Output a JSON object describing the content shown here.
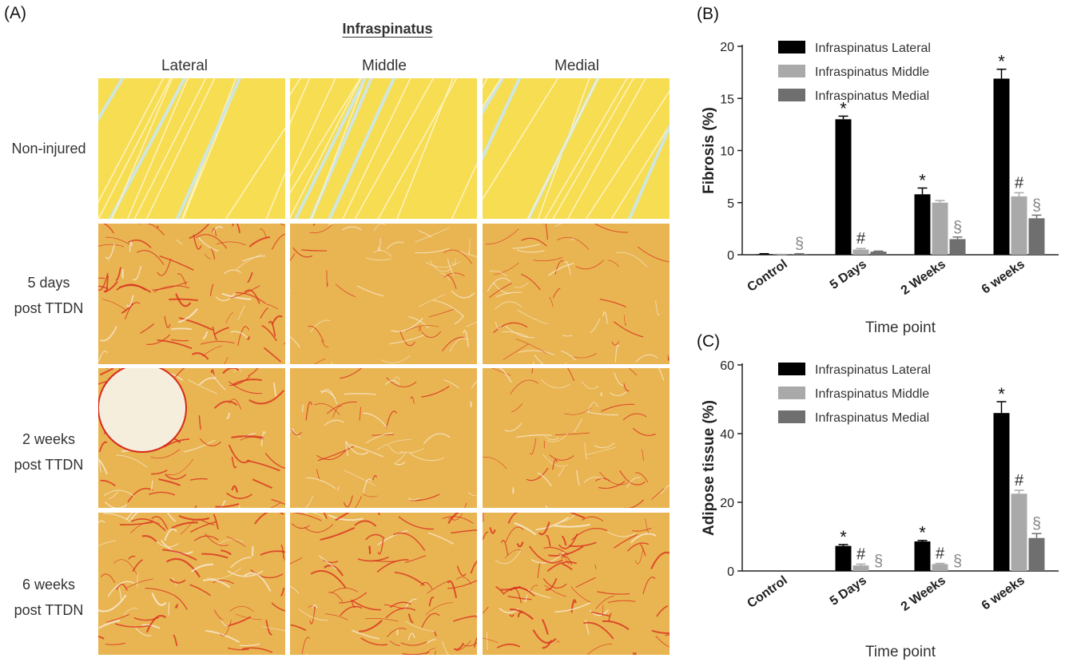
{
  "panel_a": {
    "letter": "(A)",
    "title": "Infraspinatus",
    "columns": [
      "Lateral",
      "Middle",
      "Medial"
    ],
    "rows": [
      {
        "label_line1": "Non-injured",
        "label_line2": ""
      },
      {
        "label_line1": "5 days",
        "label_line2": "post TTDN"
      },
      {
        "label_line1": "2 weeks",
        "label_line2": "post TTDN"
      },
      {
        "label_line1": "6 weeks",
        "label_line2": "post TTDN"
      }
    ]
  },
  "colors": {
    "lateral": "#000000",
    "middle": "#a9a9a9",
    "medial": "#6f6f6f",
    "tissue_yellow": "#f3c84a",
    "stain_red": "#d8291c"
  },
  "chart_data": [
    {
      "panel": "(B)",
      "type": "bar",
      "categories": [
        "Control",
        "5 Days",
        "2 Weeks",
        "6 weeks"
      ],
      "xlabel": "Time point",
      "ylabel": "Fibrosis (%)",
      "ylim": [
        0,
        20
      ],
      "yticks": [
        0,
        5,
        10,
        15,
        20
      ],
      "legend_position": "top-center",
      "series": [
        {
          "name": "Infraspinatus Lateral",
          "values": [
            0.05,
            13.0,
            5.8,
            16.9
          ],
          "errors": [
            0.05,
            0.3,
            0.6,
            0.9
          ],
          "marks": [
            "",
            "*",
            "*",
            "*"
          ]
        },
        {
          "name": "Infraspinatus Middle",
          "values": [
            0.02,
            0.5,
            5.0,
            5.6
          ],
          "errors": [
            0.02,
            0.1,
            0.2,
            0.35
          ],
          "marks": [
            "",
            "#",
            "",
            "#"
          ]
        },
        {
          "name": "Infraspinatus Medial",
          "values": [
            0.05,
            0.3,
            1.5,
            3.5
          ],
          "errors": [
            0.05,
            0.05,
            0.2,
            0.3
          ],
          "marks": [
            "§",
            "",
            "§",
            "§"
          ]
        }
      ]
    },
    {
      "panel": "(C)",
      "type": "bar",
      "categories": [
        "Control",
        "5 Days",
        "2 Weeks",
        "6 weeks"
      ],
      "xlabel": "Time point",
      "ylabel": "Adipose tissue (%)",
      "ylim": [
        0,
        60
      ],
      "yticks": [
        0,
        20,
        40,
        60
      ],
      "legend_position": "top-center",
      "series": [
        {
          "name": "Infraspinatus Lateral",
          "values": [
            0,
            7.3,
            8.6,
            46.0
          ],
          "errors": [
            0,
            0.4,
            0.3,
            3.3
          ],
          "marks": [
            "",
            "*",
            "*",
            "*"
          ]
        },
        {
          "name": "Infraspinatus Middle",
          "values": [
            0,
            1.6,
            2.0,
            22.5
          ],
          "errors": [
            0,
            0.4,
            0.2,
            1.0
          ],
          "marks": [
            "",
            "#",
            "#",
            "#"
          ]
        },
        {
          "name": "Infraspinatus Medial",
          "values": [
            0,
            0,
            0,
            9.6
          ],
          "errors": [
            0,
            0,
            0,
            1.3
          ],
          "marks": [
            "",
            "§",
            "§",
            "§"
          ]
        }
      ]
    }
  ]
}
